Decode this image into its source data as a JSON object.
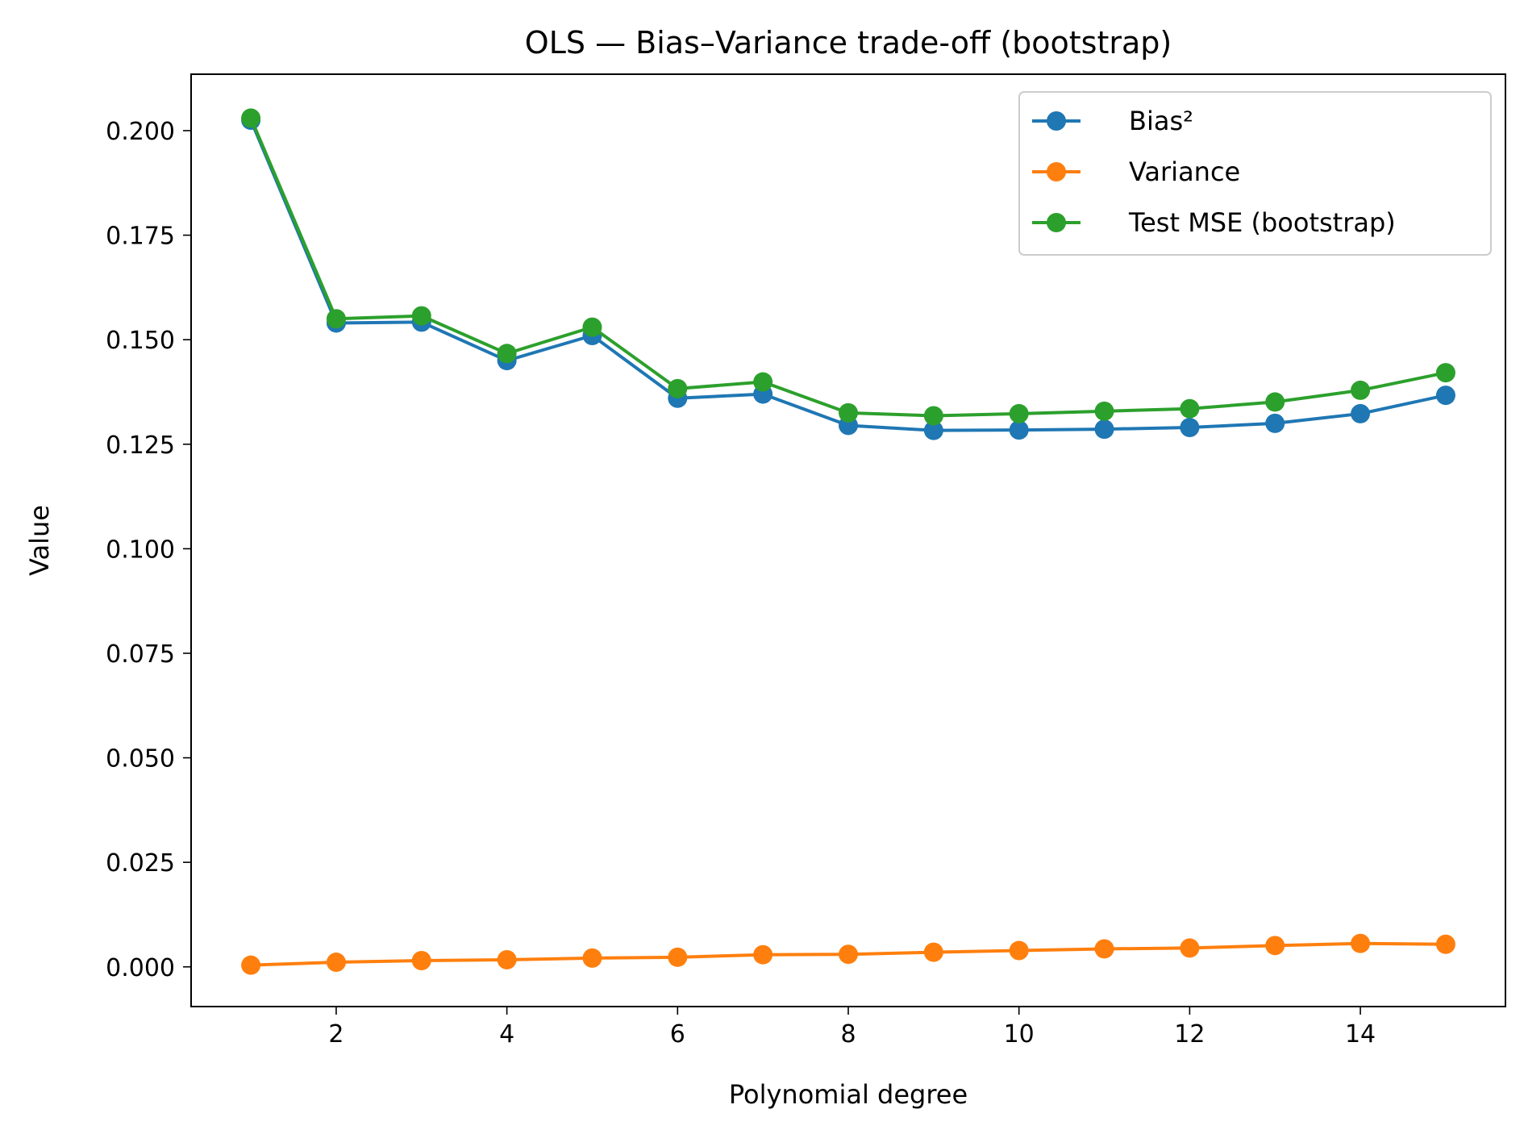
{
  "chart_data": {
    "type": "line",
    "title": "OLS — Bias–Variance trade-off (bootstrap)",
    "xlabel": "Polynomial degree",
    "ylabel": "Value",
    "xlim": [
      0.3,
      15.7
    ],
    "ylim": [
      -0.0095,
      0.2135
    ],
    "xticks": [
      2,
      4,
      6,
      8,
      10,
      12,
      14
    ],
    "yticks": [
      0.0,
      0.025,
      0.05,
      0.075,
      0.1,
      0.125,
      0.15,
      0.175,
      0.2
    ],
    "ytick_labels": [
      "0.000",
      "0.025",
      "0.050",
      "0.075",
      "0.100",
      "0.125",
      "0.150",
      "0.175",
      "0.200"
    ],
    "grid": false,
    "legend_position": "top-right",
    "x": [
      1,
      2,
      3,
      4,
      5,
      6,
      7,
      8,
      9,
      10,
      11,
      12,
      13,
      14,
      15
    ],
    "series": [
      {
        "name": "Bias²",
        "color": "#1f77b4",
        "values": [
          0.2025,
          0.154,
          0.1542,
          0.145,
          0.151,
          0.136,
          0.137,
          0.1295,
          0.1283,
          0.1284,
          0.1286,
          0.129,
          0.13,
          0.1323,
          0.1367
        ]
      },
      {
        "name": "Variance",
        "color": "#ff7f0e",
        "values": [
          0.0004,
          0.0011,
          0.0015,
          0.0017,
          0.0021,
          0.0023,
          0.0029,
          0.003,
          0.0035,
          0.0039,
          0.0043,
          0.0045,
          0.0051,
          0.0056,
          0.0054
        ]
      },
      {
        "name": "Test MSE (bootstrap)",
        "color": "#2ca02c",
        "values": [
          0.203,
          0.155,
          0.1557,
          0.1467,
          0.153,
          0.1383,
          0.1399,
          0.1325,
          0.1318,
          0.1323,
          0.1329,
          0.1335,
          0.1351,
          0.1379,
          0.1421
        ]
      }
    ]
  }
}
